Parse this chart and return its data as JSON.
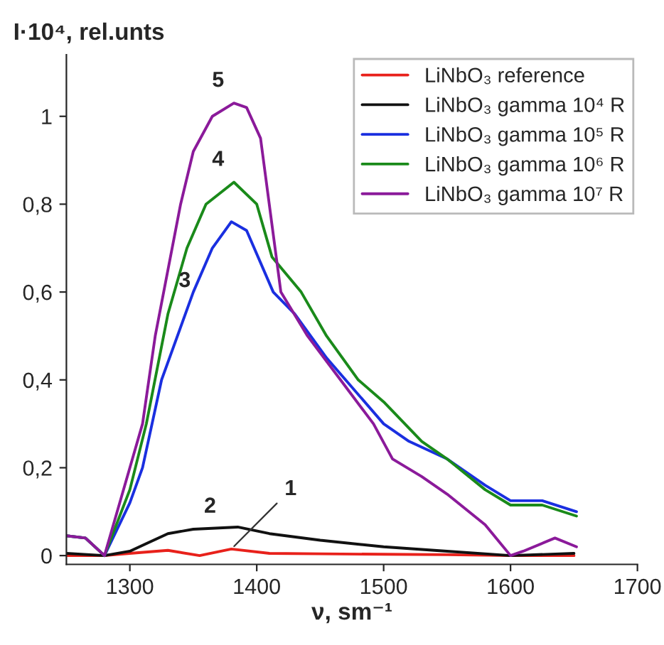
{
  "chart_data": {
    "type": "line",
    "xlabel": "ν, sm⁻¹",
    "ylabel": "I·10⁴, rel.unts",
    "xlim": [
      1250,
      1700
    ],
    "ylim": [
      -0.02,
      1.14
    ],
    "xticks": [
      1300,
      1400,
      1500,
      1600,
      1700
    ],
    "yticks": [
      {
        "value": 0,
        "label": "0"
      },
      {
        "value": 0.2,
        "label": "0,2"
      },
      {
        "value": 0.4,
        "label": "0,4"
      },
      {
        "value": 0.6,
        "label": "0,6"
      },
      {
        "value": 0.8,
        "label": "0,8"
      },
      {
        "value": 1,
        "label": "1"
      }
    ],
    "grid": false,
    "legend": "top right",
    "marker": "none",
    "line_style": "solid",
    "series": [
      {
        "name": "LiNbO₃ reference",
        "color": "#e8211b",
        "x": [
          1250,
          1280,
          1300,
          1330,
          1355,
          1380,
          1410,
          1450,
          1500,
          1550,
          1600,
          1650
        ],
        "values": [
          0,
          0,
          0.005,
          0.012,
          0,
          0.015,
          0.005,
          0.004,
          0.003,
          0.002,
          0,
          0
        ]
      },
      {
        "name": "LiNbO₃ gamma 10⁴ R",
        "color": "#111111",
        "x": [
          1250,
          1280,
          1300,
          1330,
          1350,
          1385,
          1410,
          1450,
          1500,
          1550,
          1600,
          1650
        ],
        "values": [
          0.005,
          0,
          0.01,
          0.05,
          0.06,
          0.065,
          0.05,
          0.035,
          0.02,
          0.01,
          0,
          0.005
        ]
      },
      {
        "name": "LiNbO₃ gamma 10⁵ R",
        "color": "#1a2fe0",
        "x": [
          1250,
          1265,
          1280,
          1300,
          1310,
          1325,
          1350,
          1365,
          1380,
          1392,
          1413,
          1430,
          1455,
          1470,
          1500,
          1520,
          1550,
          1580,
          1600,
          1625,
          1652
        ],
        "values": [
          0.045,
          0.04,
          0,
          0.12,
          0.2,
          0.4,
          0.6,
          0.7,
          0.76,
          0.74,
          0.6,
          0.55,
          0.45,
          0.4,
          0.3,
          0.26,
          0.22,
          0.16,
          0.125,
          0.125,
          0.1
        ]
      },
      {
        "name": "LiNbO₃ gamma 10⁶ R",
        "color": "#1a8a1a",
        "x": [
          1250,
          1265,
          1280,
          1300,
          1313,
          1330,
          1345,
          1360,
          1382,
          1400,
          1412,
          1435,
          1455,
          1480,
          1500,
          1530,
          1550,
          1580,
          1600,
          1625,
          1652
        ],
        "values": [
          0.045,
          0.04,
          0,
          0.15,
          0.3,
          0.55,
          0.7,
          0.8,
          0.85,
          0.8,
          0.68,
          0.6,
          0.5,
          0.4,
          0.35,
          0.26,
          0.22,
          0.15,
          0.115,
          0.115,
          0.09
        ]
      },
      {
        "name": "LiNbO₃ gamma 10⁷ R",
        "color": "#8b1a9a",
        "x": [
          1250,
          1265,
          1280,
          1300,
          1310,
          1320,
          1340,
          1350,
          1365,
          1382,
          1392,
          1403,
          1419,
          1440,
          1466,
          1492,
          1507,
          1530,
          1550,
          1580,
          1600,
          1610,
          1635,
          1652
        ],
        "values": [
          0.045,
          0.04,
          0,
          0.2,
          0.3,
          0.5,
          0.8,
          0.92,
          1.0,
          1.03,
          1.02,
          0.95,
          0.6,
          0.5,
          0.4,
          0.3,
          0.22,
          0.18,
          0.14,
          0.07,
          0,
          0.01,
          0.04,
          0.02
        ]
      }
    ],
    "annotations": [
      {
        "text": "5",
        "x": 1382,
        "y": 1.03
      },
      {
        "text": "4",
        "x": 1382,
        "y": 0.85
      },
      {
        "text": "3",
        "x": 1365,
        "y": 0.7
      },
      {
        "text": "2",
        "x": 1385,
        "y": 0.065
      },
      {
        "text": "1",
        "x": 1380,
        "y": 0.015
      }
    ]
  }
}
